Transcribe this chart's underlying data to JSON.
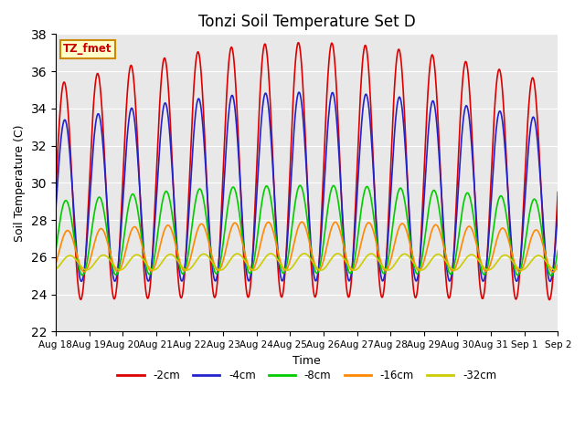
{
  "title": "Tonzi Soil Temperature Set D",
  "xlabel": "Time",
  "ylabel": "Soil Temperature (C)",
  "ylim": [
    22,
    38
  ],
  "yticks": [
    22,
    24,
    26,
    28,
    30,
    32,
    34,
    36,
    38
  ],
  "legend_label": "TZ_fmet",
  "series_labels": [
    "-2cm",
    "-4cm",
    "-8cm",
    "-16cm",
    "-32cm"
  ],
  "series_colors": [
    "#dd0000",
    "#2222cc",
    "#00cc00",
    "#ff8800",
    "#cccc00"
  ],
  "background_color": "#e8e8e8",
  "xtick_labels": [
    "Aug 18",
    "Aug 19",
    "Aug 20",
    "Aug 21",
    "Aug 22",
    "Aug 23",
    "Aug 24",
    "Aug 25",
    "Aug 26",
    "Aug 27",
    "Aug 28",
    "Aug 29",
    "Aug 30",
    "Aug 31",
    "Sep 1",
    "Sep 2"
  ],
  "n_days": 15,
  "pts_per_day": 96,
  "base_temp_2cm": 29.5,
  "base_temp_4cm": 29.0,
  "base_temp_8cm": 27.0,
  "base_temp_16cm": 26.3,
  "base_temp_32cm": 25.7,
  "amplitude_2cm": 5.8,
  "amplitude_4cm": 4.3,
  "amplitude_8cm": 2.0,
  "amplitude_16cm": 1.1,
  "amplitude_32cm": 0.38,
  "phase_2cm": 0.0,
  "phase_4cm": 0.12,
  "phase_8cm": 0.32,
  "phase_16cm": 0.65,
  "phase_32cm": 1.1,
  "env_scale": 0.18,
  "slow_trend_2cm": 1.2,
  "slow_trend_4cm": 0.8,
  "slow_trend_8cm": 0.5,
  "slow_trend_16cm": 0.3,
  "slow_trend_32cm": 0.05
}
